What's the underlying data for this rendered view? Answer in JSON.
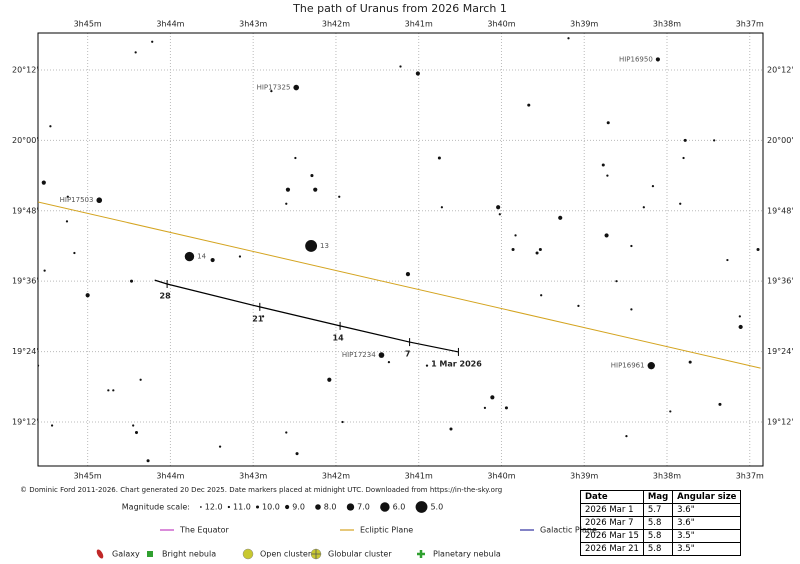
{
  "chart_data": {
    "type": "skymap",
    "title": "The path of Uranus from 2026 March 1",
    "xlim": [
      45.6,
      36.84
    ],
    "ylim": [
      19.075,
      20.305
    ],
    "xticks": [
      {
        "value": 45,
        "label": "3h45m"
      },
      {
        "value": 44,
        "label": "3h44m"
      },
      {
        "value": 43,
        "label": "3h43m"
      },
      {
        "value": 42,
        "label": "3h42m"
      },
      {
        "value": 41,
        "label": "3h41m"
      },
      {
        "value": 40,
        "label": "3h40m"
      },
      {
        "value": 39,
        "label": "3h39m"
      },
      {
        "value": 38,
        "label": "3h38m"
      },
      {
        "value": 37,
        "label": "3h37m"
      }
    ],
    "yticks": [
      {
        "value": 19.2,
        "label": "19°12'"
      },
      {
        "value": 19.4,
        "label": "19°24'"
      },
      {
        "value": 19.6,
        "label": "19°36'"
      },
      {
        "value": 19.8,
        "label": "19°48'"
      },
      {
        "value": 20.0,
        "label": "20°00'"
      },
      {
        "value": 20.2,
        "label": "20°12'"
      }
    ],
    "grid": true,
    "stars": {
      "x": [
        44.22,
        44.42,
        45.45,
        45.53,
        45.24,
        44.86,
        45.25,
        45.16,
        45.52,
        45.0,
        44.47,
        43.77,
        43.49,
        43.16,
        42.78,
        42.48,
        42.49,
        42.29,
        42.58,
        42.25,
        42.6,
        41.96,
        42.3,
        42.88,
        41.22,
        41.01,
        40.75,
        40.72,
        40.04,
        40.02,
        39.86,
        39.83,
        39.57,
        39.53,
        39.67,
        39.29,
        39.52,
        41.13,
        41.45,
        41.36,
        40.9,
        42.08,
        41.92,
        42.47,
        42.6,
        43.4,
        44.27,
        44.41,
        44.45,
        44.36,
        44.75,
        44.69,
        45.43,
        45.6,
        40.61,
        40.11,
        40.2,
        39.94,
        39.19,
        38.11,
        38.71,
        38.77,
        38.72,
        38.73,
        38.43,
        38.43,
        38.17,
        38.28,
        37.84,
        37.8,
        37.78,
        37.43,
        37.27,
        36.9,
        37.11,
        37.12,
        38.19,
        37.72,
        37.96,
        37.36,
        38.49,
        39.07,
        38.61
      ],
      "y": [
        20.28,
        20.25,
        20.04,
        19.88,
        19.84,
        19.83,
        19.77,
        19.68,
        19.63,
        19.56,
        19.6,
        19.67,
        19.66,
        19.67,
        20.14,
        20.15,
        19.95,
        19.9,
        19.86,
        19.86,
        19.82,
        19.84,
        19.7,
        19.5,
        20.21,
        20.19,
        19.95,
        19.81,
        19.81,
        19.79,
        19.69,
        19.73,
        19.68,
        19.69,
        20.1,
        19.78,
        19.56,
        19.62,
        19.39,
        19.37,
        19.36,
        19.32,
        19.2,
        19.11,
        19.17,
        19.13,
        19.09,
        19.17,
        19.19,
        19.32,
        19.29,
        19.29,
        19.19,
        19.36,
        19.18,
        19.27,
        19.24,
        19.24,
        20.29,
        20.23,
        20.05,
        19.93,
        19.9,
        19.73,
        19.7,
        19.52,
        19.87,
        19.81,
        19.82,
        19.95,
        20.0,
        20.0,
        19.66,
        19.69,
        19.47,
        19.5,
        19.36,
        19.37,
        19.23,
        19.25,
        19.16,
        19.53,
        19.6
      ],
      "mag": [
        11,
        11,
        11,
        9,
        11,
        8,
        11,
        11,
        11,
        9,
        10,
        6,
        9,
        11,
        11,
        8,
        11,
        10,
        9,
        9,
        11,
        11,
        5,
        11,
        11,
        9,
        10,
        11,
        9,
        11,
        10,
        11,
        10,
        10,
        10,
        9,
        11,
        9,
        8,
        11,
        11,
        9,
        11,
        10,
        11,
        11,
        10,
        10,
        11,
        11,
        11,
        11,
        11,
        11,
        10,
        9,
        11,
        10,
        11,
        9,
        10,
        10,
        11,
        9,
        11,
        11,
        11,
        11,
        11,
        11,
        10,
        11,
        11,
        10,
        9,
        11,
        7,
        10,
        11,
        10,
        11,
        11,
        11
      ],
      "labels": [
        null,
        null,
        null,
        null,
        null,
        "HIP17503",
        null,
        null,
        null,
        null,
        null,
        "14",
        null,
        null,
        null,
        "HIP17325",
        null,
        null,
        null,
        null,
        null,
        null,
        "13",
        null,
        null,
        null,
        null,
        null,
        null,
        null,
        null,
        null,
        null,
        null,
        null,
        null,
        null,
        null,
        "HIP17234",
        null,
        null,
        null,
        null,
        null,
        null,
        null,
        null,
        null,
        null,
        null,
        null,
        null,
        null,
        null,
        null,
        null,
        null,
        null,
        null,
        "HIP16950",
        null,
        null,
        null,
        null,
        null,
        null,
        null,
        null,
        null,
        null,
        null,
        null,
        null,
        null,
        null,
        null,
        "HIP16961",
        null,
        null,
        null,
        null,
        null,
        null
      ]
    },
    "path": {
      "color": "#000000",
      "x": [
        40.52,
        41.11,
        41.95,
        42.92,
        44.04,
        44.19
      ],
      "y": [
        19.399,
        19.427,
        19.473,
        19.527,
        19.592,
        19.603
      ],
      "labels": [
        "1 Mar 2026",
        "7",
        "14",
        "21",
        "28",
        null
      ]
    },
    "lines": [
      {
        "name": "The Equator",
        "color": "#c040c0",
        "x": [],
        "y": []
      },
      {
        "name": "Ecliptic Plane",
        "color": "#d4a420",
        "x": [
          45.6,
          36.87
        ],
        "y": [
          19.825,
          19.353
        ]
      },
      {
        "name": "Galactic Plane",
        "color": "#3030a0",
        "x": [],
        "y": []
      }
    ],
    "magnitude_scale": {
      "title": "Magnitude scale:",
      "values": [
        {
          "value": 12,
          "label": "12.0"
        },
        {
          "value": 11,
          "label": "11.0"
        },
        {
          "value": 10,
          "label": "10.0"
        },
        {
          "value": 9,
          "label": "9.0"
        },
        {
          "value": 8,
          "label": "8.0"
        },
        {
          "value": 7,
          "label": "7.0"
        },
        {
          "value": 6,
          "label": "6.0"
        },
        {
          "value": 5,
          "label": "5.0"
        }
      ]
    },
    "symbols": [
      {
        "name": "Galaxy",
        "color": "#c02828"
      },
      {
        "name": "Bright nebula",
        "color": "#30a030"
      },
      {
        "name": "Open cluster",
        "color": "#c8c830"
      },
      {
        "name": "Globular cluster",
        "color": "#c8c830"
      },
      {
        "name": "Planetary nebula",
        "color": "#30a030"
      }
    ],
    "credit": "© Dominic Ford 2011-2026. Chart generated 20 Dec 2025. Date markers placed at midnight UTC. Downloaded from https://in-the-sky.org"
  },
  "table": {
    "columns": [
      "Date",
      "Mag",
      "Angular size"
    ],
    "rows": [
      [
        "2026 Mar 1",
        5.7,
        "3.6\""
      ],
      [
        "2026 Mar 7",
        5.8,
        "3.6\""
      ],
      [
        "2026 Mar 15",
        5.8,
        "3.5\""
      ],
      [
        "2026 Mar 21",
        5.8,
        "3.5\""
      ]
    ]
  }
}
